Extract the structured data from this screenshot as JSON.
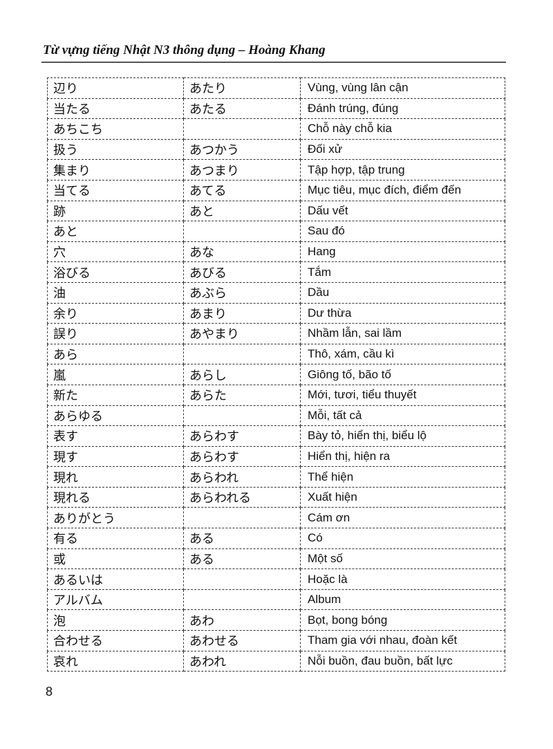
{
  "header": {
    "title": "Từ vựng tiếng Nhật N3 thông dụng – Hoàng Khang"
  },
  "vocab": [
    {
      "word": "辺り",
      "reading": "あたり",
      "meaning": "Vùng, vùng lân cận"
    },
    {
      "word": "当たる",
      "reading": "あたる",
      "meaning": "Đánh trúng, đúng"
    },
    {
      "word": "あちこち",
      "reading": "",
      "meaning": "Chỗ này chỗ kia"
    },
    {
      "word": "扱う",
      "reading": "あつかう",
      "meaning": "Đối xử"
    },
    {
      "word": "集まり",
      "reading": "あつまり",
      "meaning": "Tập hợp, tập trung"
    },
    {
      "word": "当てる",
      "reading": "あてる",
      "meaning": "Mục tiêu, mục đích, điểm đến"
    },
    {
      "word": "跡",
      "reading": "あと",
      "meaning": "Dấu vết"
    },
    {
      "word": "あと",
      "reading": "",
      "meaning": "Sau đó"
    },
    {
      "word": "穴",
      "reading": "あな",
      "meaning": "Hang"
    },
    {
      "word": "浴びる",
      "reading": "あびる",
      "meaning": "Tắm"
    },
    {
      "word": "油",
      "reading": "あぶら",
      "meaning": "Dầu"
    },
    {
      "word": "余り",
      "reading": "あまり",
      "meaning": "Dư thừa"
    },
    {
      "word": "誤り",
      "reading": "あやまり",
      "meaning": "Nhầm lẫn, sai lầm"
    },
    {
      "word": "あら",
      "reading": "",
      "meaning": "Thô,  xám, cầu kì"
    },
    {
      "word": "嵐",
      "reading": "あらし",
      "meaning": "Giông tố, bão tố"
    },
    {
      "word": "新た",
      "reading": "あらた",
      "meaning": "Mới, tươi, tiểu thuyết"
    },
    {
      "word": "あらゆる",
      "reading": "",
      "meaning": "Mỗi, tất cả"
    },
    {
      "word": "表す",
      "reading": "あらわす",
      "meaning": "Bày tỏ, hiển thị, biểu lộ"
    },
    {
      "word": "現す",
      "reading": "あらわす",
      "meaning": "Hiển thị, hiện ra"
    },
    {
      "word": "現れ",
      "reading": "あらわれ",
      "meaning": "Thể hiện"
    },
    {
      "word": "現れる",
      "reading": "あらわれる",
      "meaning": "Xuất hiện"
    },
    {
      "word": "ありがとう",
      "reading": "",
      "meaning": "Cám ơn"
    },
    {
      "word": "有る",
      "reading": "ある",
      "meaning": "Có"
    },
    {
      "word": "或",
      "reading": "ある",
      "meaning": "Một số"
    },
    {
      "word": "あるいは",
      "reading": "",
      "meaning": "Hoặc là"
    },
    {
      "word": "アルバム",
      "reading": "",
      "meaning": "Album"
    },
    {
      "word": "泡",
      "reading": "あわ",
      "meaning": "Bọt, bong bóng"
    },
    {
      "word": "合わせる",
      "reading": "あわせる",
      "meaning": "Tham gia với nhau, đoàn kết"
    },
    {
      "word": "哀れ",
      "reading": "あわれ",
      "meaning": "Nỗi buồn, đau buồn, bất lực"
    }
  ],
  "footer": {
    "page_number": "8"
  }
}
